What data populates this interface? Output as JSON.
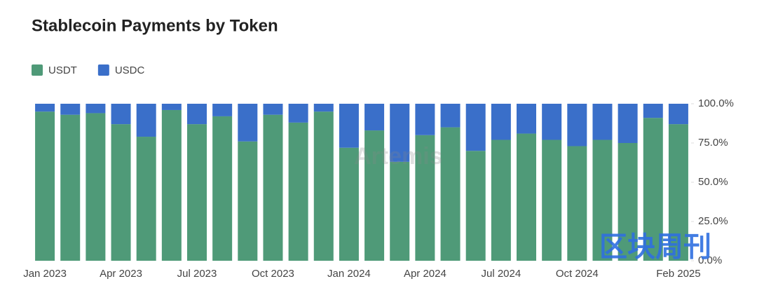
{
  "chart_data": {
    "type": "stacked_bar",
    "title": "Stablecoin Payments by Token",
    "categories": [
      "Jan 2023",
      null,
      null,
      "Apr 2023",
      null,
      null,
      "Jul 2023",
      null,
      null,
      "Oct 2023",
      null,
      null,
      "Jan 2024",
      null,
      null,
      "Apr 2024",
      null,
      null,
      "Jul 2024",
      null,
      null,
      "Oct 2024",
      null,
      null,
      null,
      "Feb 2025"
    ],
    "series": [
      {
        "name": "USDT",
        "color": "#4f9a78",
        "values": [
          95,
          93,
          94,
          87,
          79,
          96,
          87,
          92,
          76,
          93,
          88,
          95,
          72,
          83,
          63,
          80,
          85,
          70,
          77,
          81,
          77,
          73,
          77,
          75,
          91,
          87
        ]
      },
      {
        "name": "USDC",
        "color": "#3a6fc9",
        "values": [
          5,
          7,
          6,
          13,
          21,
          4,
          13,
          8,
          24,
          7,
          12,
          5,
          28,
          17,
          37,
          20,
          15,
          30,
          23,
          19,
          23,
          27,
          23,
          25,
          9,
          13
        ]
      }
    ],
    "ylim": [
      0,
      100
    ],
    "yticks": [
      {
        "value": 0,
        "label": "0.0%"
      },
      {
        "value": 25,
        "label": "25.0%"
      },
      {
        "value": 50,
        "label": "50.0%"
      },
      {
        "value": 75,
        "label": "75.0%"
      },
      {
        "value": 100,
        "label": "100.0%"
      }
    ],
    "legend": "top-left",
    "watermarks": [
      "Artemis",
      "区块周刊"
    ]
  }
}
